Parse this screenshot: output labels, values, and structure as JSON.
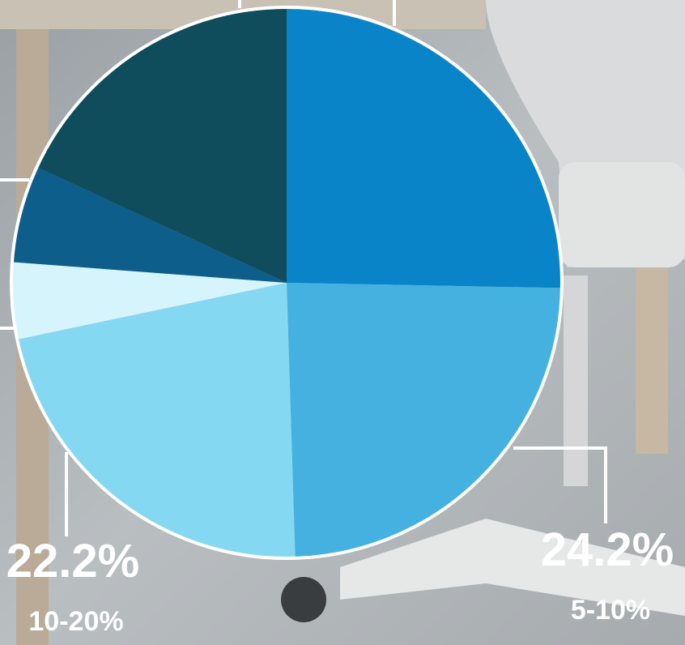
{
  "chart_data": {
    "type": "pie",
    "categories": [
      null,
      "5-10%",
      "10-20%",
      null,
      null,
      null
    ],
    "values": [
      25.3,
      24.2,
      22.2,
      4.5,
      5.7,
      18.1
    ],
    "value_labels": [
      null,
      "24.2%",
      "22.2%",
      null,
      null,
      null
    ],
    "colors": [
      "#0a84c8",
      "#45b1e0",
      "#85d8f2",
      "#d6f4fc",
      "#0d5e8a",
      "#0f4c5c"
    ]
  }
}
